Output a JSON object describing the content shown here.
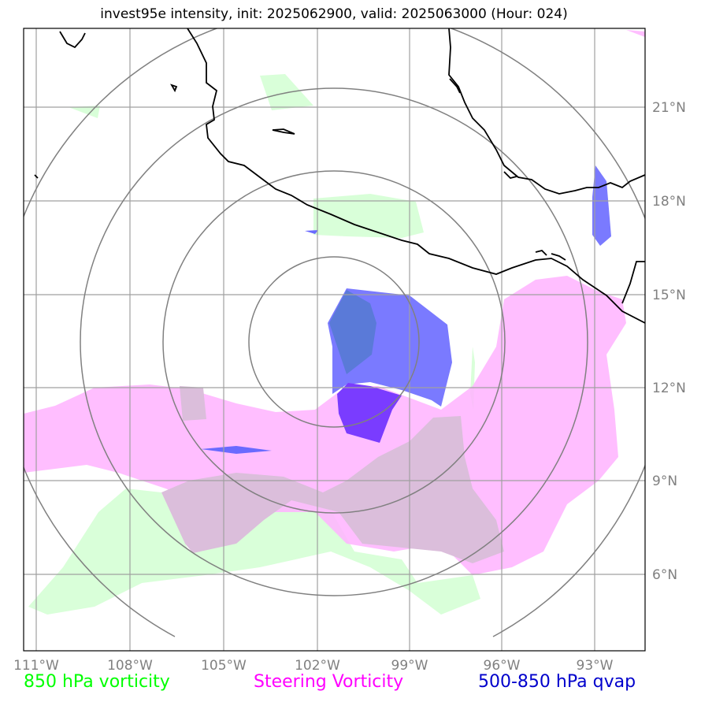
{
  "title": "invest95e intensity, init: 2025062900, valid: 2025063000 (Hour: 024)",
  "map": {
    "lon_labels": [
      "111°W",
      "108°W",
      "105°W",
      "102°W",
      "99°W",
      "96°W",
      "93°W"
    ],
    "lat_labels": [
      "21°N",
      "18°N",
      "15°N",
      "12°N",
      "9°N",
      "6°N"
    ],
    "gridline_color": "#a0a0a0",
    "range_ring_color": "#808080",
    "coastline_color": "#000000"
  },
  "legend": [
    {
      "label": "850 hPa vorticity",
      "color": "#00ff00"
    },
    {
      "label": "Steering Vorticity",
      "color": "#ff00ff"
    },
    {
      "label": "500-850 hPa qvap",
      "color": "#0000cc"
    }
  ],
  "layer_colors": {
    "vorticity_850": "#ccffcc",
    "steering_vorticity": "#ffb3ff",
    "overlap": "#dbbedb",
    "qvap": "#6a6aff",
    "qvap_dark": "#7a3cff"
  }
}
